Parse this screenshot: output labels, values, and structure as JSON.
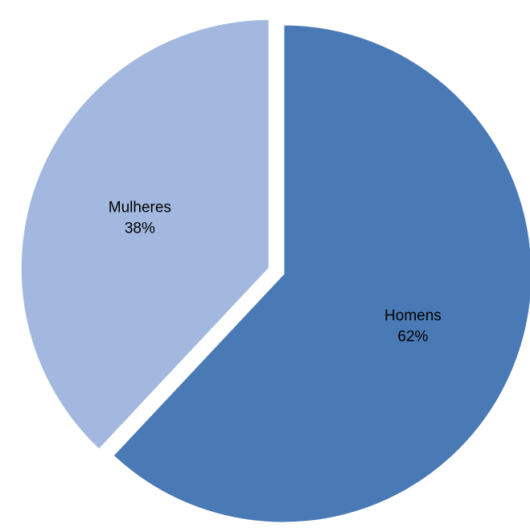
{
  "chart_data": {
    "type": "pie",
    "title": "",
    "series": [
      {
        "values": [
          {
            "category": "Homens",
            "percent": 62,
            "label": "Homens",
            "percent_label": "62%",
            "color": "#4a7ab5",
            "exploded": false
          },
          {
            "category": "Mulheres",
            "percent": 38,
            "label": "Mulheres",
            "percent_label": "38%",
            "color": "#a2b8df",
            "exploded": true
          }
        ]
      }
    ],
    "start_angle_deg": 0,
    "direction": "clockwise",
    "legend": "none",
    "data_labels": "inside"
  }
}
